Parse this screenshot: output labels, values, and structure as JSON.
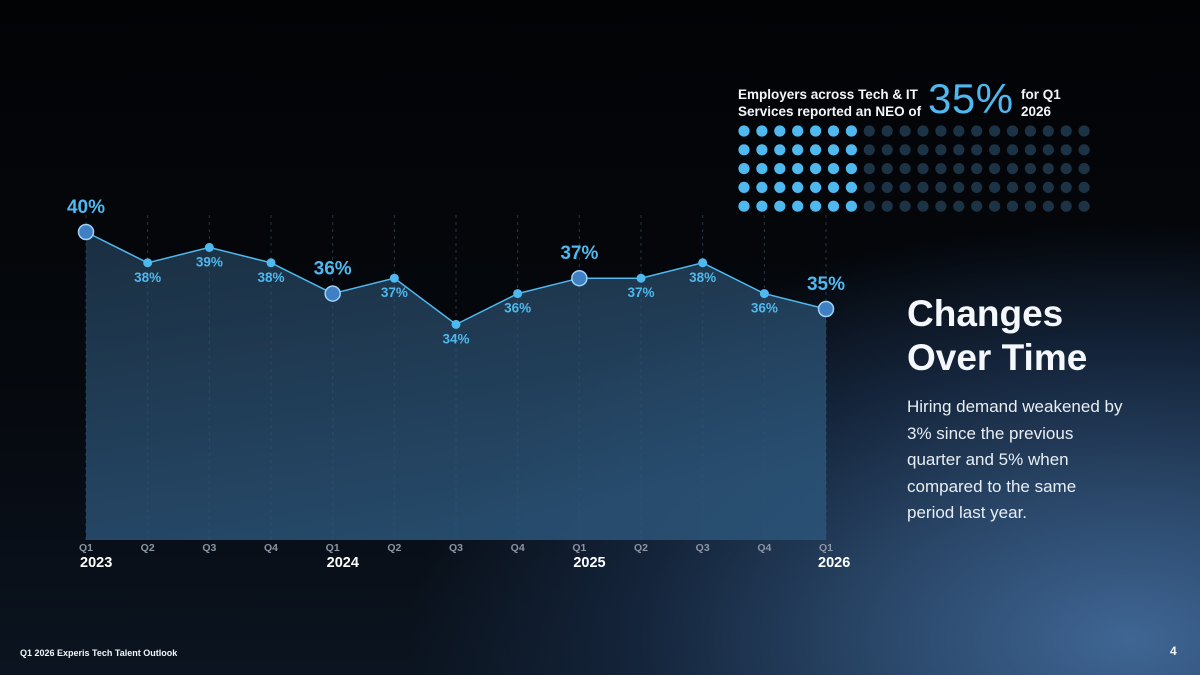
{
  "callout": {
    "text_before": "Employers across Tech & IT Services reported an NEO of",
    "value": "35%",
    "text_after": "for Q1 2026",
    "dots_filled_per_row": 7,
    "dots_total_per_row": 20,
    "dot_rows": 5,
    "color_filled": "#4fb8ee",
    "color_empty": "#1c3346"
  },
  "side": {
    "title_line1": "Changes",
    "title_line2": "Over Time",
    "body": "Hiring demand weakened by 3% since the previous quarter and 5% when compared to the same period last year."
  },
  "footer": {
    "left": "Q1 2026 Experis Tech Talent Outlook",
    "page": "4"
  },
  "chart_data": {
    "type": "area",
    "x": [
      "Q1 2023",
      "Q2 2023",
      "Q3 2023",
      "Q4 2023",
      "Q1 2024",
      "Q2 2024",
      "Q3 2024",
      "Q4 2024",
      "Q1 2025",
      "Q2 2025",
      "Q3 2025",
      "Q4 2025",
      "Q1 2026"
    ],
    "quarter_labels": [
      "Q1",
      "Q2",
      "Q3",
      "Q4",
      "Q1",
      "Q2",
      "Q3",
      "Q4",
      "Q1",
      "Q2",
      "Q3",
      "Q4",
      "Q1"
    ],
    "year_labels": [
      "2023",
      "",
      "",
      "",
      "2024",
      "",
      "",
      "",
      "2025",
      "",
      "",
      "",
      "2026"
    ],
    "values": [
      40,
      38,
      39,
      38,
      36,
      37,
      34,
      36,
      37,
      37,
      38,
      36,
      35
    ],
    "value_labels": [
      "40%",
      "38%",
      "39%",
      "38%",
      "36%",
      "37%",
      "34%",
      "36%",
      "37%",
      "37%",
      "38%",
      "36%",
      "35%"
    ],
    "highlighted_points": [
      0,
      4,
      8,
      12
    ],
    "ylim": [
      20,
      40
    ],
    "grid": "vertical-dashed",
    "line_color": "#4fb8ee",
    "label_color": "#4fb8ee",
    "year_label_color": "#ffffff",
    "axis_label_color": "#8a96a4"
  }
}
